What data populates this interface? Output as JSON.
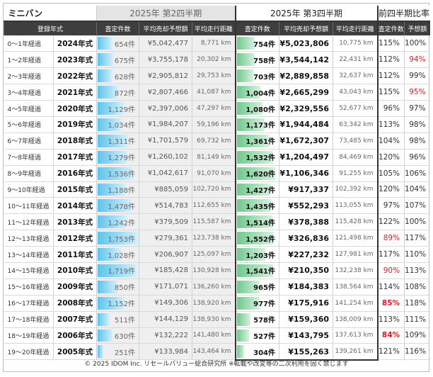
{
  "title": "ミニバン",
  "quarters": {
    "prev": "2025年 第2四半期",
    "cur": "2025年 第3四半期",
    "ratio": "前四半期比率"
  },
  "columns": {
    "year": "登録年式",
    "prev_count": "査定件数",
    "prev_price": "平均売却予想額",
    "prev_dist": "平均走行距離",
    "cur_count": "査定件数",
    "cur_price": "平均売却予想額",
    "cur_dist": "平均走行距離",
    "ratio_count": "査定件数",
    "ratio_price": "予想額"
  },
  "rows": [
    {
      "age": "0～1年経過",
      "year": "2024年式",
      "prev_count": "654件",
      "prev_price": "¥5,042,477",
      "prev_dist": "8,771 km",
      "cur_count": "754件",
      "cur_price": "¥5,023,806",
      "cur_dist": "10,775 km",
      "ratio_count": "115%",
      "ratio_price": "100%"
    },
    {
      "age": "1～2年経過",
      "year": "2023年式",
      "prev_count": "675件",
      "prev_price": "¥3,755,178",
      "prev_dist": "20,302 km",
      "cur_count": "758件",
      "cur_price": "¥3,544,142",
      "cur_dist": "22,431 km",
      "ratio_count": "112%",
      "ratio_price": "94%"
    },
    {
      "age": "2～3年経過",
      "year": "2022年式",
      "prev_count": "628件",
      "prev_price": "¥2,905,812",
      "prev_dist": "29,753 km",
      "cur_count": "703件",
      "cur_price": "¥2,889,858",
      "cur_dist": "32,637 km",
      "ratio_count": "112%",
      "ratio_price": "99%"
    },
    {
      "age": "3～4年経過",
      "year": "2021年式",
      "prev_count": "872件",
      "prev_price": "¥2,807,466",
      "prev_dist": "41,087 km",
      "cur_count": "1,004件",
      "cur_price": "¥2,665,299",
      "cur_dist": "43,043 km",
      "ratio_count": "115%",
      "ratio_price": "95%"
    },
    {
      "age": "4～5年経過",
      "year": "2020年式",
      "prev_count": "1,129件",
      "prev_price": "¥2,397,006",
      "prev_dist": "47,297 km",
      "cur_count": "1,080件",
      "cur_price": "¥2,329,556",
      "cur_dist": "52,677 km",
      "ratio_count": "96%",
      "ratio_price": "97%"
    },
    {
      "age": "5～6年経過",
      "year": "2019年式",
      "prev_count": "1,034件",
      "prev_price": "¥1,984,207",
      "prev_dist": "59,196 km",
      "cur_count": "1,173件",
      "cur_price": "¥1,944,484",
      "cur_dist": "63,342 km",
      "ratio_count": "113%",
      "ratio_price": "98%"
    },
    {
      "age": "6～7年経過",
      "year": "2018年式",
      "prev_count": "1,311件",
      "prev_price": "¥1,701,579",
      "prev_dist": "69,732 km",
      "cur_count": "1,361件",
      "cur_price": "¥1,672,307",
      "cur_dist": "73,485 km",
      "ratio_count": "104%",
      "ratio_price": "98%"
    },
    {
      "age": "7～8年経過",
      "year": "2017年式",
      "prev_count": "1,279件",
      "prev_price": "¥1,260,102",
      "prev_dist": "81,149 km",
      "cur_count": "1,532件",
      "cur_price": "¥1,204,497",
      "cur_dist": "84,469 km",
      "ratio_count": "120%",
      "ratio_price": "96%"
    },
    {
      "age": "8～9年経過",
      "year": "2016年式",
      "prev_count": "1,536件",
      "prev_price": "¥1,042,617",
      "prev_dist": "91,070 km",
      "cur_count": "1,620件",
      "cur_price": "¥1,106,346",
      "cur_dist": "91,255 km",
      "ratio_count": "105%",
      "ratio_price": "106%"
    },
    {
      "age": "9～10年経過",
      "year": "2015年式",
      "prev_count": "1,188件",
      "prev_price": "¥885,059",
      "prev_dist": "102,720 km",
      "cur_count": "1,427件",
      "cur_price": "¥917,337",
      "cur_dist": "102,392 km",
      "ratio_count": "120%",
      "ratio_price": "104%"
    },
    {
      "age": "10～11年経過",
      "year": "2014年式",
      "prev_count": "1,478件",
      "prev_price": "¥514,783",
      "prev_dist": "112,655 km",
      "cur_count": "1,435件",
      "cur_price": "¥552,293",
      "cur_dist": "113,055 km",
      "ratio_count": "97%",
      "ratio_price": "107%"
    },
    {
      "age": "11～12年経過",
      "year": "2013年式",
      "prev_count": "1,242件",
      "prev_price": "¥379,509",
      "prev_dist": "115,587 km",
      "cur_count": "1,514件",
      "cur_price": "¥378,388",
      "cur_dist": "115,428 km",
      "ratio_count": "122%",
      "ratio_price": "100%"
    },
    {
      "age": "12～13年経過",
      "year": "2012年式",
      "prev_count": "1,753件",
      "prev_price": "¥279,361",
      "prev_dist": "123,738 km",
      "cur_count": "1,552件",
      "cur_price": "¥326,836",
      "cur_dist": "121,498 km",
      "ratio_count": "89%",
      "ratio_price": "117%"
    },
    {
      "age": "13～14年経過",
      "year": "2011年式",
      "prev_count": "1,028件",
      "prev_price": "¥206,907",
      "prev_dist": "125,097 km",
      "cur_count": "1,203件",
      "cur_price": "¥227,232",
      "cur_dist": "127,981 km",
      "ratio_count": "117%",
      "ratio_price": "110%"
    },
    {
      "age": "14～15年経過",
      "year": "2010年式",
      "prev_count": "1,719件",
      "prev_price": "¥185,428",
      "prev_dist": "130,928 km",
      "cur_count": "1,541件",
      "cur_price": "¥210,350",
      "cur_dist": "132,238 km",
      "ratio_count": "90%",
      "ratio_price": "113%"
    },
    {
      "age": "15～16年経過",
      "year": "2009年式",
      "prev_count": "850件",
      "prev_price": "¥171,071",
      "prev_dist": "136,260 km",
      "cur_count": "965件",
      "cur_price": "¥184,383",
      "cur_dist": "138,564 km",
      "ratio_count": "114%",
      "ratio_price": "108%"
    },
    {
      "age": "16～17年経過",
      "year": "2008年式",
      "prev_count": "1,152件",
      "prev_price": "¥149,306",
      "prev_dist": "138,920 km",
      "cur_count": "977件",
      "cur_price": "¥175,916",
      "cur_dist": "141,254 km",
      "ratio_count": "85%",
      "ratio_price": "118%"
    },
    {
      "age": "17～18年経過",
      "year": "2007年式",
      "prev_count": "511件",
      "prev_price": "¥144,129",
      "prev_dist": "138,930 km",
      "cur_count": "578件",
      "cur_price": "¥159,360",
      "cur_dist": "138,009 km",
      "ratio_count": "113%",
      "ratio_price": "111%"
    },
    {
      "age": "18～19年経過",
      "year": "2006年式",
      "prev_count": "630件",
      "prev_price": "¥132,222",
      "prev_dist": "141,480 km",
      "cur_count": "527件",
      "cur_price": "¥143,795",
      "cur_dist": "137,613 km",
      "ratio_count": "84%",
      "ratio_price": "109%"
    },
    {
      "age": "19～20年経過",
      "year": "2005年式",
      "prev_count": "251件",
      "prev_price": "¥133,984",
      "prev_dist": "143,464 km",
      "cur_count": "304件",
      "cur_price": "¥155,263",
      "cur_dist": "139,261 km",
      "ratio_count": "121%",
      "ratio_price": "116%"
    }
  ],
  "highlights": {
    "ratio_count_red": [
      12,
      14,
      16,
      18
    ],
    "ratio_count_bold": [
      16,
      18
    ],
    "ratio_price_red": [
      1,
      3
    ]
  },
  "bar_max": 1800,
  "colors": {
    "header_bg": "#3e3e3e",
    "prev_bg": "#efefef",
    "prev_bar": "#5dc4ec",
    "cur_bar": "#6fc98c",
    "highlight_red": "#e0191f"
  },
  "footer": "© 2025 IDOM Inc. リセールバリュー総合研究所 ※転載や改変等の二次利用を固く禁じます"
}
